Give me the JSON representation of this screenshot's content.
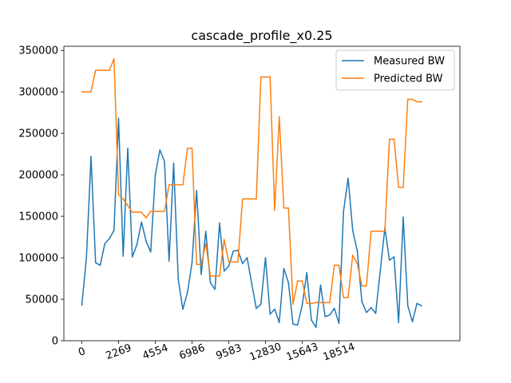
{
  "chart_data": {
    "type": "line",
    "title": "cascade_profile_x0.25",
    "xlabel": "",
    "ylabel": "",
    "x_tick_labels": [
      "0",
      "2269",
      "4554",
      "6986",
      "9583",
      "12830",
      "15643",
      "18514"
    ],
    "y_tick_labels": [
      "0",
      "50000",
      "100000",
      "150000",
      "200000",
      "250000",
      "300000",
      "350000"
    ],
    "y_ticks": [
      0,
      50000,
      100000,
      150000,
      200000,
      250000,
      300000,
      350000
    ],
    "ylim": [
      0,
      355000
    ],
    "grid": false,
    "legend_position": "top-right",
    "series": [
      {
        "name": "Measured BW",
        "color": "#1f77b4",
        "values": [
          43000,
          100000,
          222000,
          94000,
          91000,
          117000,
          123000,
          133000,
          268000,
          102000,
          232000,
          101000,
          116000,
          143000,
          120000,
          107000,
          200000,
          230000,
          216000,
          96000,
          214000,
          74000,
          38000,
          58000,
          94000,
          181000,
          80000,
          132000,
          70000,
          62000,
          142000,
          84000,
          90000,
          108000,
          109000,
          93000,
          100000,
          69000,
          39000,
          44000,
          100000,
          32000,
          38000,
          22000,
          87000,
          70000,
          20000,
          19000,
          43000,
          82000,
          25000,
          16000,
          67000,
          29000,
          31000,
          39000,
          21000,
          156000,
          196000,
          133000,
          108000,
          47000,
          34000,
          40000,
          33000,
          84000,
          136000,
          97000,
          101000,
          22000,
          149000,
          42000,
          23000,
          45000,
          42000
        ]
      },
      {
        "name": "Predicted BW",
        "color": "#ff7f0e",
        "values": [
          300000,
          300000,
          300000,
          326000,
          326000,
          326000,
          326000,
          340000,
          176000,
          171000,
          163000,
          155000,
          155000,
          155000,
          148000,
          156000,
          156000,
          156000,
          156000,
          188000,
          188000,
          188000,
          188000,
          232000,
          232000,
          92000,
          92000,
          117000,
          78000,
          78000,
          78000,
          122000,
          95000,
          95000,
          95000,
          171000,
          171000,
          171000,
          171000,
          318000,
          318000,
          318000,
          157000,
          270000,
          160000,
          160000,
          44000,
          72000,
          72000,
          45000,
          45000,
          46000,
          46000,
          46000,
          46000,
          91000,
          91000,
          52000,
          52000,
          103000,
          93000,
          66000,
          66000,
          132000,
          132000,
          132000,
          132000,
          243000,
          243000,
          185000,
          185000,
          291000,
          291000,
          288000,
          288000
        ]
      }
    ]
  }
}
